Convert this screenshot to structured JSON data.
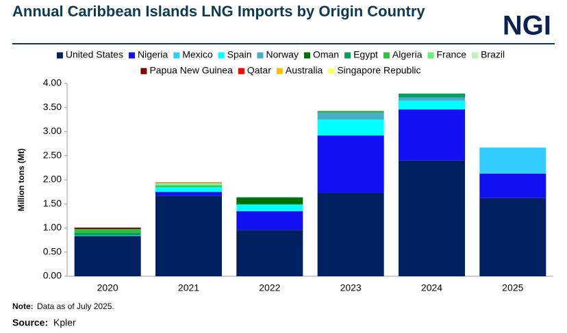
{
  "logo": "NGI",
  "chart_data": {
    "type": "stacked-bar",
    "title": "Annual Caribbean Islands LNG Imports by Origin Country",
    "y_label": "Million tons (Mt)",
    "note_label": "Note:",
    "note": "Data as of July 2025.",
    "source_label": "Source:",
    "source": "Kpler",
    "categories": [
      "2020",
      "2021",
      "2022",
      "2023",
      "2024",
      "2025"
    ],
    "ylim": [
      0,
      4
    ],
    "yticks": [
      {
        "value": 0,
        "label": "0.00"
      },
      {
        "value": 0.5,
        "label": "0.50"
      },
      {
        "value": 1,
        "label": "1.00"
      },
      {
        "value": 1.5,
        "label": "1.50"
      },
      {
        "value": 2,
        "label": "2.00"
      },
      {
        "value": 2.5,
        "label": "2.50"
      },
      {
        "value": 3,
        "label": "3.00"
      },
      {
        "value": 3.5,
        "label": "3.50"
      },
      {
        "value": 4,
        "label": "4.00"
      }
    ],
    "legend": "top",
    "series": [
      {
        "name": "United States",
        "color": "#002060",
        "values": [
          0.83,
          1.67,
          0.96,
          1.73,
          2.4,
          1.62
        ]
      },
      {
        "name": "Nigeria",
        "color": "#1010f0",
        "values": [
          0,
          0.08,
          0.39,
          1.19,
          1.06,
          0.51
        ]
      },
      {
        "name": "Mexico",
        "color": "#33ccff",
        "values": [
          0,
          0,
          0,
          0,
          0,
          0.54
        ]
      },
      {
        "name": "Spain",
        "color": "#00ffff",
        "values": [
          0,
          0.1,
          0.14,
          0.33,
          0.18,
          0
        ]
      },
      {
        "name": "Norway",
        "color": "#4bacc6",
        "values": [
          0.02,
          0,
          0,
          0.15,
          0.07,
          0
        ]
      },
      {
        "name": "Oman",
        "color": "#007000",
        "values": [
          0,
          0,
          0.14,
          0.01,
          0,
          0
        ]
      },
      {
        "name": "Egypt",
        "color": "#00a060",
        "values": [
          0.05,
          0,
          0.01,
          0,
          0.08,
          0
        ]
      },
      {
        "name": "Algeria",
        "color": "#33c040",
        "values": [
          0.08,
          0.03,
          0,
          0.02,
          0,
          0
        ]
      },
      {
        "name": "France",
        "color": "#66ee77",
        "values": [
          0,
          0.03,
          0,
          0,
          0,
          0
        ]
      },
      {
        "name": "Brazil",
        "color": "#bbf5bb",
        "values": [
          0,
          0.02,
          0,
          0,
          0,
          0
        ]
      },
      {
        "name": "Papua New Guinea",
        "color": "#800000",
        "values": [
          0.03,
          0.01,
          0,
          0,
          0,
          0
        ]
      },
      {
        "name": "Qatar",
        "color": "#ff0000",
        "values": [
          0,
          0,
          0,
          0,
          0,
          0
        ]
      },
      {
        "name": "Australia",
        "color": "#ffc000",
        "values": [
          0,
          0.01,
          0,
          0,
          0,
          0
        ]
      },
      {
        "name": "Singapore Republic",
        "color": "#ffff66",
        "values": [
          0,
          0,
          0,
          0,
          0,
          0
        ]
      }
    ]
  }
}
